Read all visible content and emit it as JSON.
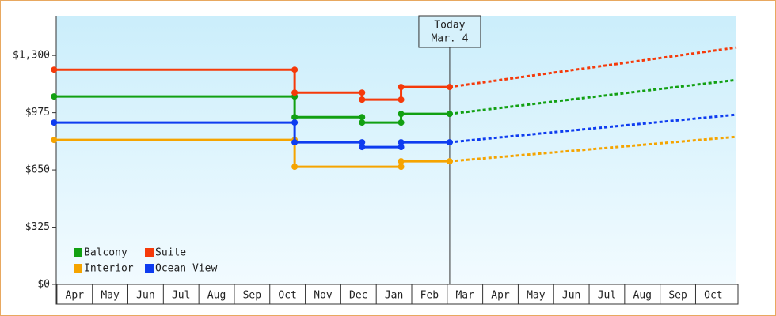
{
  "chart_data": {
    "type": "step-line",
    "categories": [
      "Apr",
      "May",
      "Jun",
      "Jul",
      "Aug",
      "Sep",
      "Oct",
      "Nov",
      "Dec",
      "Jan",
      "Feb",
      "Mar",
      "Apr",
      "May",
      "Jun",
      "Jul",
      "Aug",
      "Sep",
      "Oct"
    ],
    "xlim": [
      -0.02,
      19.15
    ],
    "ylim": [
      0,
      1525
    ],
    "yticks": [
      {
        "value": 0,
        "label": "$0"
      },
      {
        "value": 325,
        "label": "$325"
      },
      {
        "value": 650,
        "label": "$650"
      },
      {
        "value": 975,
        "label": "$975"
      },
      {
        "value": 1300,
        "label": "$1,300"
      }
    ],
    "annotation": {
      "x": 11.07,
      "lines": [
        "Today",
        "Mar. 4"
      ]
    },
    "legend": "lower left",
    "series": [
      {
        "name": "Balcony",
        "color": "#12a012",
        "x": [
          -0.08,
          6.7,
          6.7,
          8.6,
          8.6,
          9.7,
          9.7,
          11.07,
          19.15
        ],
        "values": [
          1067,
          1067,
          950,
          950,
          919,
          919,
          968,
          968,
          1161
        ]
      },
      {
        "name": "Suite",
        "color": "#f53a0a",
        "x": [
          -0.08,
          6.7,
          6.7,
          8.6,
          8.6,
          9.7,
          9.7,
          11.07,
          19.15
        ],
        "values": [
          1219,
          1219,
          1089,
          1089,
          1049,
          1049,
          1121,
          1121,
          1345
        ]
      },
      {
        "name": "Interior",
        "color": "#f5a400",
        "x": [
          -0.08,
          6.7,
          6.7,
          9.7,
          9.7,
          11.07,
          19.15
        ],
        "values": [
          820,
          820,
          668,
          668,
          699,
          699,
          838
        ]
      },
      {
        "name": "Ocean View",
        "color": "#0e3cf0",
        "x": [
          -0.08,
          6.7,
          6.7,
          8.6,
          8.6,
          9.7,
          9.7,
          11.07,
          19.15
        ],
        "values": [
          919,
          919,
          807,
          807,
          780,
          780,
          807,
          807,
          964
        ]
      }
    ]
  }
}
